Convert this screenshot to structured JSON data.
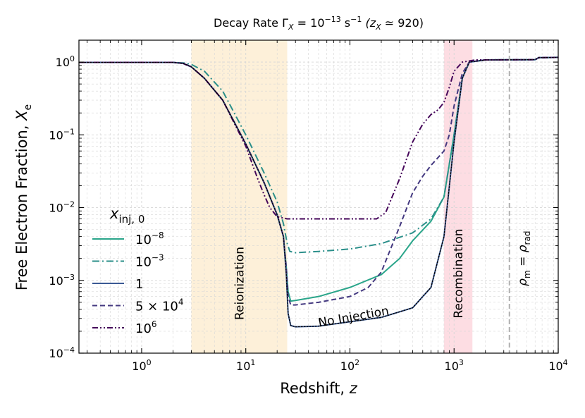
{
  "chart_data": {
    "type": "line",
    "title": "Decay Rate Γ_X = 10^−13 s^−1  (z_X ≃ 920)",
    "title_parts": {
      "prefix": "Decay Rate Γ",
      "sub": "X",
      "mid": " = 10",
      "sup": "−13",
      "unit": " s",
      "unit_sup": "−1",
      "tail_open": "  (z",
      "tail_sub": "X",
      "tail_rest": " ≃ 920)"
    },
    "xlabel": "Redshift, z",
    "xlabel_parts": {
      "main": "Redshift, ",
      "var": "z"
    },
    "ylabel": "Free Electron Fraction, X_e",
    "ylabel_parts": {
      "main": "Free Electron Fraction, ",
      "var": "X",
      "sub": "e"
    },
    "xscale": "log",
    "yscale": "log",
    "xlim": [
      0.25,
      10000
    ],
    "ylim": [
      0.0001,
      2
    ],
    "grid": true,
    "x_ticks": [
      {
        "value": 1,
        "base": "10",
        "exp": "0"
      },
      {
        "value": 10,
        "base": "10",
        "exp": "1"
      },
      {
        "value": 100,
        "base": "10",
        "exp": "2"
      },
      {
        "value": 1000,
        "base": "10",
        "exp": "3"
      },
      {
        "value": 10000,
        "base": "10",
        "exp": "4"
      }
    ],
    "y_ticks": [
      {
        "value": 0.0001,
        "base": "10",
        "exp": "−4"
      },
      {
        "value": 0.001,
        "base": "10",
        "exp": "−3"
      },
      {
        "value": 0.01,
        "base": "10",
        "exp": "−2"
      },
      {
        "value": 0.1,
        "base": "10",
        "exp": "−1"
      },
      {
        "value": 1,
        "base": "10",
        "exp": "0"
      }
    ],
    "bands": [
      {
        "name": "Reionization",
        "range": [
          3,
          25
        ],
        "color": "#fdf0d9"
      },
      {
        "name": "Recombination",
        "range": [
          800,
          1500
        ],
        "color": "#fddde3"
      }
    ],
    "vline": {
      "x": 3400,
      "color": "#b0b0b0",
      "label_parts": {
        "a": "ρ",
        "a_sub": "m",
        "eq": " = ",
        "b": "ρ",
        "b_sub": "rad"
      }
    },
    "annotation": {
      "text": "No Injection",
      "x": 110,
      "y": 0.00028,
      "rotation_deg": -10
    },
    "legend": {
      "title_parts": {
        "var": "x",
        "sub": "inj, 0"
      },
      "placement": "center-left",
      "entries": [
        {
          "label_base": "10",
          "label_exp": "−8",
          "color": "#2aa58a",
          "dash": "solid"
        },
        {
          "label_base": "10",
          "label_exp": "−3",
          "color": "#2b8f8a",
          "dash": "dashdot"
        },
        {
          "label_base": "1",
          "label_exp": "",
          "color": "#3b5a94",
          "dash": "solid"
        },
        {
          "label_base": "5 × 10",
          "label_exp": "4",
          "color": "#443980",
          "dash": "dashed"
        },
        {
          "label_base": "10",
          "label_exp": "6",
          "color": "#45065a",
          "dash": "dashdotdot"
        }
      ]
    },
    "series": [
      {
        "name": "No Injection",
        "color": "#000000",
        "dash": "dotted",
        "width": 1.3,
        "points": [
          [
            0.25,
            0.99
          ],
          [
            2.0,
            0.99
          ],
          [
            2.5,
            0.96
          ],
          [
            3.0,
            0.86
          ],
          [
            4.0,
            0.6
          ],
          [
            6.0,
            0.3
          ],
          [
            10.0,
            0.075
          ],
          [
            15.0,
            0.022
          ],
          [
            20.0,
            0.008
          ],
          [
            23.0,
            0.004
          ],
          [
            24.5,
            0.0012
          ],
          [
            25.5,
            0.00035
          ],
          [
            27.0,
            0.00024
          ],
          [
            30.0,
            0.00023
          ],
          [
            50.0,
            0.000235
          ],
          [
            100.0,
            0.00027
          ],
          [
            200.0,
            0.00031
          ],
          [
            400.0,
            0.00042
          ],
          [
            600.0,
            0.0008
          ],
          [
            800.0,
            0.004
          ],
          [
            1000.0,
            0.08
          ],
          [
            1200.0,
            0.6
          ],
          [
            1400.0,
            1.0
          ],
          [
            2000.0,
            1.07
          ],
          [
            6000.0,
            1.08
          ],
          [
            6500.0,
            1.15
          ],
          [
            10000.0,
            1.16
          ]
        ]
      },
      {
        "name": "10^-8",
        "color": "#2aa58a",
        "dash": "solid",
        "width": 2,
        "points": [
          [
            0.25,
            0.99
          ],
          [
            2.0,
            0.99
          ],
          [
            2.5,
            0.96
          ],
          [
            3.0,
            0.86
          ],
          [
            4.0,
            0.6
          ],
          [
            6.0,
            0.3
          ],
          [
            10.0,
            0.075
          ],
          [
            15.0,
            0.022
          ],
          [
            20.0,
            0.008
          ],
          [
            23.0,
            0.004
          ],
          [
            24.5,
            0.0015
          ],
          [
            25.5,
            0.0007
          ],
          [
            27.0,
            0.00052
          ],
          [
            30.0,
            0.00053
          ],
          [
            50.0,
            0.0006
          ],
          [
            100.0,
            0.0008
          ],
          [
            200.0,
            0.0012
          ],
          [
            300.0,
            0.002
          ],
          [
            400.0,
            0.0035
          ],
          [
            600.0,
            0.0065
          ],
          [
            800.0,
            0.014
          ],
          [
            1000.0,
            0.1
          ],
          [
            1200.0,
            0.6
          ],
          [
            1400.0,
            1.0
          ],
          [
            2000.0,
            1.07
          ],
          [
            6000.0,
            1.08
          ],
          [
            6500.0,
            1.15
          ],
          [
            10000.0,
            1.16
          ]
        ]
      },
      {
        "name": "10^-3",
        "color": "#2b8f8a",
        "dash": "dashdot",
        "width": 2,
        "points": [
          [
            0.25,
            0.99
          ],
          [
            2.0,
            0.99
          ],
          [
            2.6,
            0.97
          ],
          [
            3.0,
            0.93
          ],
          [
            4.0,
            0.75
          ],
          [
            6.0,
            0.4
          ],
          [
            10.0,
            0.1
          ],
          [
            15.0,
            0.03
          ],
          [
            20.0,
            0.012
          ],
          [
            23.0,
            0.006
          ],
          [
            25.0,
            0.0032
          ],
          [
            26.5,
            0.0025
          ],
          [
            30.0,
            0.0024
          ],
          [
            50.0,
            0.0025
          ],
          [
            100.0,
            0.0027
          ],
          [
            200.0,
            0.0032
          ],
          [
            400.0,
            0.0045
          ],
          [
            600.0,
            0.007
          ],
          [
            800.0,
            0.014
          ],
          [
            1000.0,
            0.1
          ],
          [
            1200.0,
            0.6
          ],
          [
            1400.0,
            1.0
          ],
          [
            2000.0,
            1.07
          ],
          [
            6000.0,
            1.08
          ],
          [
            6500.0,
            1.15
          ],
          [
            10000.0,
            1.16
          ]
        ]
      },
      {
        "name": "1",
        "color": "#3b5a94",
        "dash": "solid",
        "width": 2,
        "points": [
          [
            0.25,
            0.99
          ],
          [
            2.0,
            0.99
          ],
          [
            2.5,
            0.96
          ],
          [
            3.0,
            0.86
          ],
          [
            4.0,
            0.6
          ],
          [
            6.0,
            0.3
          ],
          [
            10.0,
            0.075
          ],
          [
            15.0,
            0.022
          ],
          [
            20.0,
            0.008
          ],
          [
            23.0,
            0.004
          ],
          [
            24.5,
            0.0012
          ],
          [
            25.5,
            0.00035
          ],
          [
            27.0,
            0.00024
          ],
          [
            30.0,
            0.00023
          ],
          [
            50.0,
            0.000235
          ],
          [
            100.0,
            0.00027
          ],
          [
            200.0,
            0.00031
          ],
          [
            400.0,
            0.00042
          ],
          [
            600.0,
            0.0008
          ],
          [
            800.0,
            0.004
          ],
          [
            1000.0,
            0.08
          ],
          [
            1200.0,
            0.6
          ],
          [
            1400.0,
            1.0
          ],
          [
            2000.0,
            1.07
          ],
          [
            6000.0,
            1.08
          ],
          [
            6500.0,
            1.15
          ],
          [
            10000.0,
            1.16
          ]
        ]
      },
      {
        "name": "5x10^4",
        "color": "#443980",
        "dash": "dashed",
        "width": 2,
        "points": [
          [
            0.25,
            0.99
          ],
          [
            2.0,
            0.99
          ],
          [
            2.5,
            0.96
          ],
          [
            3.0,
            0.86
          ],
          [
            4.0,
            0.6
          ],
          [
            6.0,
            0.3
          ],
          [
            10.0,
            0.075
          ],
          [
            15.0,
            0.022
          ],
          [
            20.0,
            0.008
          ],
          [
            23.0,
            0.004
          ],
          [
            24.5,
            0.0015
          ],
          [
            25.5,
            0.0006
          ],
          [
            27.0,
            0.00046
          ],
          [
            30.0,
            0.00046
          ],
          [
            50.0,
            0.0005
          ],
          [
            100.0,
            0.0006
          ],
          [
            150.0,
            0.0008
          ],
          [
            200.0,
            0.0013
          ],
          [
            300.0,
            0.0055
          ],
          [
            400.0,
            0.016
          ],
          [
            500.0,
            0.027
          ],
          [
            600.0,
            0.038
          ],
          [
            800.0,
            0.06
          ],
          [
            900.0,
            0.1
          ],
          [
            1000.0,
            0.25
          ],
          [
            1200.0,
            0.7
          ],
          [
            1400.0,
            1.0
          ],
          [
            2000.0,
            1.07
          ],
          [
            6000.0,
            1.08
          ],
          [
            6500.0,
            1.15
          ],
          [
            10000.0,
            1.16
          ]
        ]
      },
      {
        "name": "10^6",
        "color": "#45065a",
        "dash": "dashdotdot",
        "width": 2,
        "points": [
          [
            0.25,
            0.99
          ],
          [
            2.0,
            0.99
          ],
          [
            2.5,
            0.96
          ],
          [
            3.0,
            0.86
          ],
          [
            4.0,
            0.6
          ],
          [
            6.0,
            0.3
          ],
          [
            10.0,
            0.07
          ],
          [
            13.0,
            0.025
          ],
          [
            15.0,
            0.015
          ],
          [
            17.0,
            0.01
          ],
          [
            20.0,
            0.0075
          ],
          [
            25.0,
            0.007
          ],
          [
            50.0,
            0.007
          ],
          [
            100.0,
            0.007
          ],
          [
            180.0,
            0.007
          ],
          [
            220.0,
            0.0085
          ],
          [
            300.0,
            0.025
          ],
          [
            400.0,
            0.08
          ],
          [
            500.0,
            0.14
          ],
          [
            600.0,
            0.19
          ],
          [
            700.0,
            0.22
          ],
          [
            800.0,
            0.28
          ],
          [
            900.0,
            0.45
          ],
          [
            1000.0,
            0.75
          ],
          [
            1200.0,
            1.0
          ],
          [
            1600.0,
            1.07
          ],
          [
            6000.0,
            1.08
          ],
          [
            6500.0,
            1.15
          ],
          [
            10000.0,
            1.16
          ]
        ]
      }
    ]
  }
}
